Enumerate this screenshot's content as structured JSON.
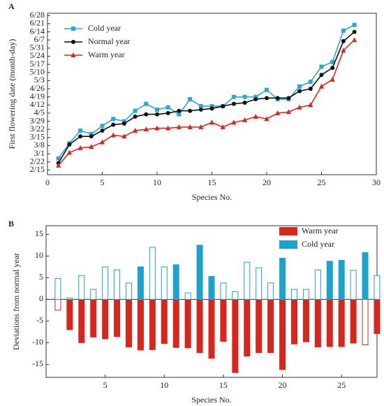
{
  "chart_data": [
    {
      "type": "line",
      "panel_label": "A",
      "x_label": "Species No.",
      "y_label": "First flowering date (month-day)",
      "x": [
        1,
        2,
        3,
        4,
        5,
        6,
        7,
        8,
        9,
        10,
        11,
        12,
        13,
        14,
        15,
        16,
        17,
        18,
        19,
        20,
        21,
        22,
        23,
        24,
        25,
        26,
        27,
        28
      ],
      "xlim": [
        0,
        30
      ],
      "xticks": [
        0,
        5,
        10,
        15,
        20,
        25,
        30
      ],
      "ylim": [
        42,
        181
      ],
      "yticks": [
        {
          "value": 46,
          "label": "2/15"
        },
        {
          "value": 53,
          "label": "2/22"
        },
        {
          "value": 60,
          "label": "3/1"
        },
        {
          "value": 67,
          "label": "3/8"
        },
        {
          "value": 74,
          "label": "3/15"
        },
        {
          "value": 81,
          "label": "3/22"
        },
        {
          "value": 88,
          "label": "3/29"
        },
        {
          "value": 95,
          "label": "4/5"
        },
        {
          "value": 102,
          "label": "4/12"
        },
        {
          "value": 109,
          "label": "4/19"
        },
        {
          "value": 116,
          "label": "4/26"
        },
        {
          "value": 123,
          "label": "5/3"
        },
        {
          "value": 130,
          "label": "5/10"
        },
        {
          "value": 137,
          "label": "5/17"
        },
        {
          "value": 144,
          "label": "5/24"
        },
        {
          "value": 151,
          "label": "5/31"
        },
        {
          "value": 158,
          "label": "6/7"
        },
        {
          "value": 165,
          "label": "6/14"
        },
        {
          "value": 172,
          "label": "6/21"
        },
        {
          "value": 179,
          "label": "6/28"
        }
      ],
      "legend": "upper left",
      "series": [
        {
          "name": "Cold year",
          "color": "#2aa7d2",
          "marker": "square",
          "values": [
            56,
            69,
            80,
            77,
            84,
            90,
            88,
            97,
            103,
            98,
            100,
            94,
            107,
            101,
            101,
            101,
            109,
            109,
            109,
            115,
            107,
            107,
            118,
            122,
            135,
            139,
            166,
            171
          ]
        },
        {
          "name": "Normal year",
          "color": "#111111",
          "marker": "circle",
          "values": [
            52,
            68,
            75,
            75,
            80,
            85,
            86,
            92,
            94,
            94,
            95,
            97,
            97,
            98,
            99,
            101,
            103,
            104,
            107,
            108,
            108,
            108,
            114,
            116,
            128,
            134,
            157,
            165
          ]
        },
        {
          "name": "Warm year",
          "color": "#d8261d",
          "marker": "triangle",
          "values": [
            50,
            61,
            65,
            66,
            70,
            76,
            75,
            80,
            81,
            82,
            82,
            83,
            83,
            83,
            87,
            83,
            87,
            89,
            92,
            90,
            95,
            96,
            100,
            102,
            118,
            124,
            149,
            158
          ]
        }
      ]
    },
    {
      "type": "bar",
      "panel_label": "B",
      "x_label": "Species No.",
      "y_label": "Deviations from normal year",
      "x": [
        1,
        2,
        3,
        4,
        5,
        6,
        7,
        8,
        9,
        10,
        11,
        12,
        13,
        14,
        15,
        16,
        17,
        18,
        19,
        20,
        21,
        22,
        23,
        24,
        25,
        26,
        27,
        28
      ],
      "xlim": [
        0,
        28
      ],
      "xticks": [
        5,
        10,
        15,
        20,
        25
      ],
      "ylim": [
        -18,
        17
      ],
      "yticks": [
        -15,
        -10,
        -5,
        0,
        5,
        10,
        15
      ],
      "legend": "upper right",
      "series": [
        {
          "name": "Warm year",
          "color": "#d8261d",
          "values": [
            -2.5,
            -7,
            -10,
            -8.7,
            -9.1,
            -8.6,
            -11,
            -11.7,
            -11.6,
            -10.2,
            -11.1,
            -11.2,
            -12.3,
            -13.6,
            -9.7,
            -16.9,
            -13.1,
            -12.3,
            -12.3,
            -16.2,
            -10.3,
            -9.8,
            -11,
            -10.9,
            -10.9,
            -10.1,
            -10.5,
            -7.9
          ],
          "filled": [
            false,
            true,
            true,
            true,
            true,
            true,
            true,
            true,
            true,
            true,
            true,
            true,
            true,
            true,
            true,
            true,
            true,
            true,
            true,
            true,
            true,
            true,
            true,
            true,
            true,
            true,
            false,
            true
          ]
        },
        {
          "name": "Cold year",
          "color": "#1aa3cc",
          "values": [
            4.8,
            0.3,
            5.5,
            2.3,
            7.5,
            6.8,
            3.8,
            7.5,
            12,
            7.5,
            8,
            1.5,
            12.5,
            5.3,
            3.8,
            1.8,
            8.6,
            7.3,
            3.8,
            9.5,
            2.3,
            2.3,
            6.8,
            8.8,
            9,
            6.7,
            10.8,
            5.5
          ],
          "filled": [
            false,
            false,
            false,
            false,
            false,
            false,
            false,
            true,
            false,
            false,
            true,
            false,
            true,
            true,
            false,
            false,
            false,
            false,
            false,
            true,
            false,
            false,
            false,
            true,
            true,
            false,
            true,
            false
          ]
        }
      ]
    }
  ]
}
